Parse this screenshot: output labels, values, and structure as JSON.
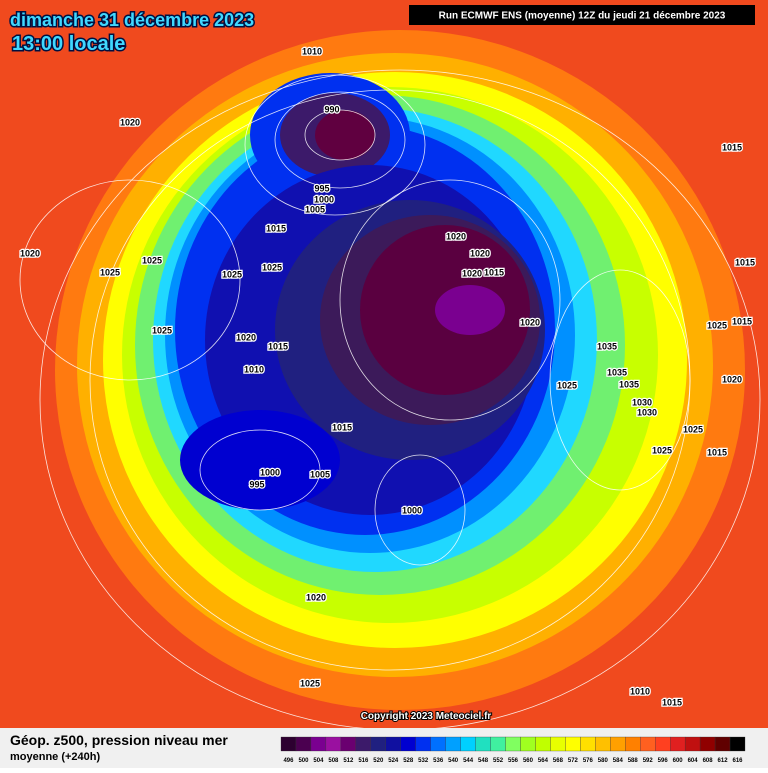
{
  "header": {
    "date": "dimanche 31 décembre 2023",
    "time": "13:00 locale",
    "run": "Run ECMWF ENS (moyenne) 12Z du jeudi 21 décembre 2023"
  },
  "isobar_labels": [
    1010,
    990,
    1020,
    995,
    1000,
    1005,
    1015,
    1020,
    1020,
    1020,
    1015,
    1020,
    1025,
    1025,
    1025,
    1025,
    1015,
    1015,
    1025,
    1020,
    1020,
    1015,
    1025,
    1015,
    1035,
    1010,
    1035,
    1035,
    1025,
    1020,
    1030,
    1030,
    1015,
    1025,
    1025,
    1015,
    1000,
    995,
    1005,
    1000,
    1020,
    1025,
    1010,
    1015
  ],
  "copyright": "Copyright 2023 Meteociel.fr",
  "footer": {
    "title": "Géop. z500, pression niveau mer",
    "subtitle": "moyenne  (+240h)"
  },
  "scale": {
    "values": [
      496,
      500,
      504,
      508,
      512,
      516,
      520,
      524,
      528,
      532,
      536,
      540,
      544,
      548,
      552,
      556,
      560,
      564,
      568,
      572,
      576,
      580,
      584,
      588,
      592,
      596,
      600,
      604,
      608,
      612,
      616
    ],
    "colors": [
      "#2d0030",
      "#4b0050",
      "#7a0090",
      "#9a10a0",
      "#6a0070",
      "#3c1a6a",
      "#202080",
      "#1010a0",
      "#0000d0",
      "#0030f0",
      "#0070ff",
      "#00a0ff",
      "#00d0ff",
      "#20e0c0",
      "#40f0a0",
      "#80ff60",
      "#a0ff20",
      "#c0ff00",
      "#e8ff00",
      "#ffff00",
      "#ffe000",
      "#ffc000",
      "#ffa000",
      "#ff8000",
      "#ff6020",
      "#ff4020",
      "#e02020",
      "#c01010",
      "#900000",
      "#600000",
      "#000000"
    ]
  }
}
